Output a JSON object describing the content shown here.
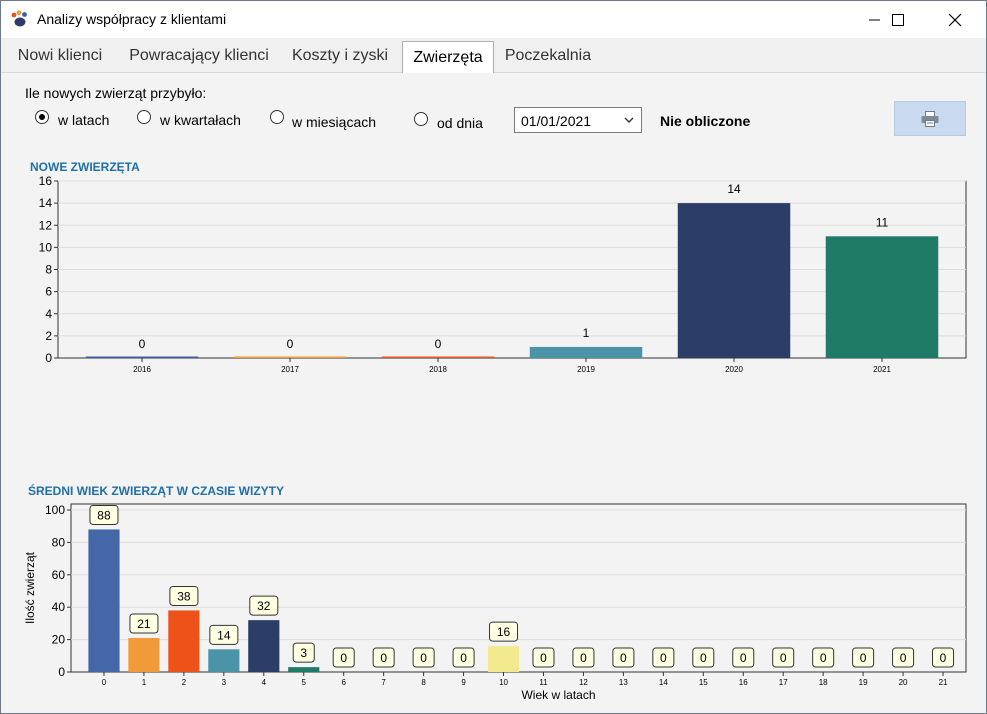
{
  "window": {
    "title": "Analizy współpracy z klientami"
  },
  "tabs": [
    {
      "label": "Nowi klienci"
    },
    {
      "label": "Powracający klienci"
    },
    {
      "label": "Koszty i zyski"
    },
    {
      "label": "Zwierzęta",
      "active": true
    },
    {
      "label": "Poczekalnia"
    }
  ],
  "controls": {
    "question": "Ile nowych zwierząt przybyło:",
    "radios": [
      {
        "label": "w latach",
        "checked": true
      },
      {
        "label": "w kwartałach",
        "checked": false
      },
      {
        "label": "w miesiącach",
        "checked": false
      },
      {
        "label": "od dnia",
        "checked": false
      }
    ],
    "date_value": "01/01/2021",
    "status": "Nie obliczone",
    "print_icon": "printer-icon"
  },
  "chart_data": [
    {
      "type": "bar",
      "title": "NOWE ZWIERZĘTA",
      "categories": [
        "2016",
        "2017",
        "2018",
        "2019",
        "2020",
        "2021"
      ],
      "values": [
        0,
        0,
        0,
        1,
        14,
        11
      ],
      "colors": [
        "#3e5fa0",
        "#f09a3a",
        "#e8541e",
        "#4b94a8",
        "#2c3d68",
        "#1f7a66"
      ],
      "ylim": [
        0,
        16
      ],
      "yticks": [
        0,
        2,
        4,
        6,
        8,
        10,
        12,
        14,
        16
      ],
      "xlabel": "",
      "ylabel": "",
      "grid": true
    },
    {
      "type": "bar",
      "title": "ŚREDNI WIEK ZWIERZĄT W CZASIE WIZYTY",
      "categories": [
        "0",
        "1",
        "2",
        "3",
        "4",
        "5",
        "6",
        "7",
        "8",
        "9",
        "10",
        "11",
        "12",
        "13",
        "14",
        "15",
        "16",
        "17",
        "18",
        "19",
        "20",
        "21"
      ],
      "values": [
        88,
        21,
        38,
        14,
        32,
        3,
        0,
        0,
        0,
        0,
        16,
        0,
        0,
        0,
        0,
        0,
        0,
        0,
        0,
        0,
        0,
        0
      ],
      "colors": [
        "#4467a8",
        "#f09a3a",
        "#ee5219",
        "#4b94a8",
        "#2c3d68",
        "#1f7a66",
        "#ec6f65",
        "#f2b63c",
        "#a08fb3",
        "#7b9e3f",
        "#f3e98d",
        "#3b78b5",
        "#e36c3a",
        "#45a6b0",
        "#6a4c93",
        "#9e5b3f",
        "#5b8e5b",
        "#c0504d",
        "#4f81bd",
        "#9bbb59",
        "#8064a2",
        "#f79646"
      ],
      "ylim": [
        0,
        100
      ],
      "yticks": [
        0,
        20,
        40,
        60,
        80,
        100
      ],
      "xlabel": "Wiek w latach",
      "ylabel": "Ilość zwierząt",
      "grid": true
    }
  ]
}
